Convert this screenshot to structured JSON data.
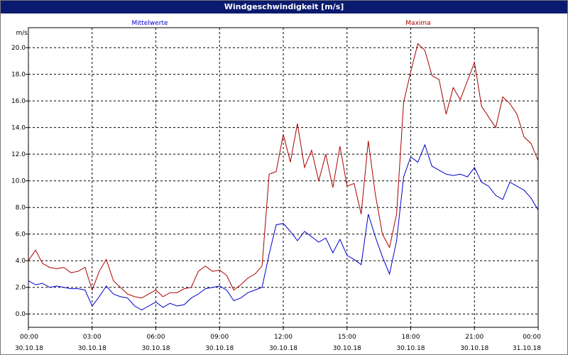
{
  "window": {
    "title": "Windgeschwindigkeit [m/s]"
  },
  "chart_data": {
    "type": "line",
    "title": "Windgeschwindigkeit [m/s]",
    "ylabel": "m/s",
    "xlabel": "",
    "ylim": [
      -1,
      21.5
    ],
    "xlim": [
      "30.10.18 00:00",
      "31.10.18 00:00"
    ],
    "grid": true,
    "yticks": [
      "0.0",
      "2.0",
      "4.0",
      "6.0",
      "8.0",
      "10.0",
      "12.0",
      "14.0",
      "16.0",
      "18.0",
      "20.0"
    ],
    "xticks": [
      {
        "time": "00:00",
        "date": "30.10.18"
      },
      {
        "time": "03:00",
        "date": "30.10.18"
      },
      {
        "time": "06:00",
        "date": "30.10.18"
      },
      {
        "time": "09:00",
        "date": "30.10.18"
      },
      {
        "time": "12:00",
        "date": "30.10.18"
      },
      {
        "time": "15:00",
        "date": "30.10.18"
      },
      {
        "time": "18:00",
        "date": "30.10.18"
      },
      {
        "time": "21:00",
        "date": "30.10.18"
      },
      {
        "time": "00:00",
        "date": "31.10.18"
      }
    ],
    "x": [
      "00:00",
      "00:20",
      "00:40",
      "01:00",
      "01:20",
      "01:40",
      "02:00",
      "02:20",
      "02:40",
      "03:00",
      "03:20",
      "03:40",
      "04:00",
      "04:20",
      "04:40",
      "05:00",
      "05:20",
      "05:40",
      "06:00",
      "06:20",
      "06:40",
      "07:00",
      "07:20",
      "07:40",
      "08:00",
      "08:20",
      "08:40",
      "09:00",
      "09:20",
      "09:40",
      "10:00",
      "10:20",
      "10:40",
      "11:00",
      "11:20",
      "11:40",
      "12:00",
      "12:20",
      "12:40",
      "13:00",
      "13:20",
      "13:40",
      "14:00",
      "14:20",
      "14:40",
      "15:00",
      "15:20",
      "15:40",
      "16:00",
      "16:20",
      "16:40",
      "17:00",
      "17:20",
      "17:40",
      "18:00",
      "18:20",
      "18:40",
      "19:00",
      "19:20",
      "19:40",
      "20:00",
      "20:20",
      "20:40",
      "21:00",
      "21:20",
      "21:40",
      "22:00",
      "22:20",
      "22:40",
      "23:00",
      "23:20",
      "23:40",
      "24:00"
    ],
    "series": [
      {
        "name": "Mittelwerte",
        "color": "#0000cc",
        "values": [
          2.5,
          2.2,
          2.3,
          2.0,
          2.1,
          2.0,
          1.9,
          1.9,
          1.8,
          0.6,
          1.3,
          2.1,
          1.5,
          1.3,
          1.2,
          0.6,
          0.3,
          0.6,
          0.9,
          0.5,
          0.8,
          0.6,
          0.7,
          1.2,
          1.5,
          1.9,
          2.0,
          2.1,
          1.8,
          1.0,
          1.2,
          1.6,
          1.8,
          2.0,
          4.5,
          6.7,
          6.8,
          6.2,
          5.5,
          6.2,
          5.8,
          5.4,
          5.7,
          4.6,
          5.6,
          4.4,
          4.1,
          3.7,
          7.5,
          5.8,
          4.3,
          3.0,
          5.5,
          10.3,
          11.8,
          11.4,
          12.7,
          11.1,
          10.8,
          10.5,
          10.4,
          10.5,
          10.3,
          11.0,
          9.9,
          9.6,
          8.9,
          8.6,
          9.9,
          9.6,
          9.3,
          8.7,
          7.8
        ]
      },
      {
        "name": "Maxima",
        "color": "#aa0000",
        "values": [
          4.0,
          4.8,
          3.8,
          3.5,
          3.4,
          3.5,
          3.1,
          3.2,
          3.5,
          1.8,
          3.2,
          4.1,
          2.5,
          2.0,
          1.5,
          1.3,
          1.2,
          1.5,
          1.8,
          1.3,
          1.6,
          1.6,
          1.9,
          2.0,
          3.2,
          3.6,
          3.2,
          3.3,
          2.9,
          1.8,
          2.2,
          2.7,
          3.0,
          3.6,
          10.5,
          10.7,
          13.5,
          11.4,
          14.3,
          11.0,
          12.3,
          10.0,
          12.0,
          9.5,
          12.6,
          9.6,
          9.8,
          7.5,
          13.0,
          9.0,
          6.0,
          5.0,
          7.5,
          15.9,
          18.2,
          20.3,
          19.8,
          17.9,
          17.6,
          15.0,
          17.0,
          16.1,
          17.5,
          18.9,
          15.6,
          14.8,
          14.0,
          16.3,
          15.8,
          15.0,
          13.3,
          12.8,
          11.5
        ]
      }
    ]
  }
}
